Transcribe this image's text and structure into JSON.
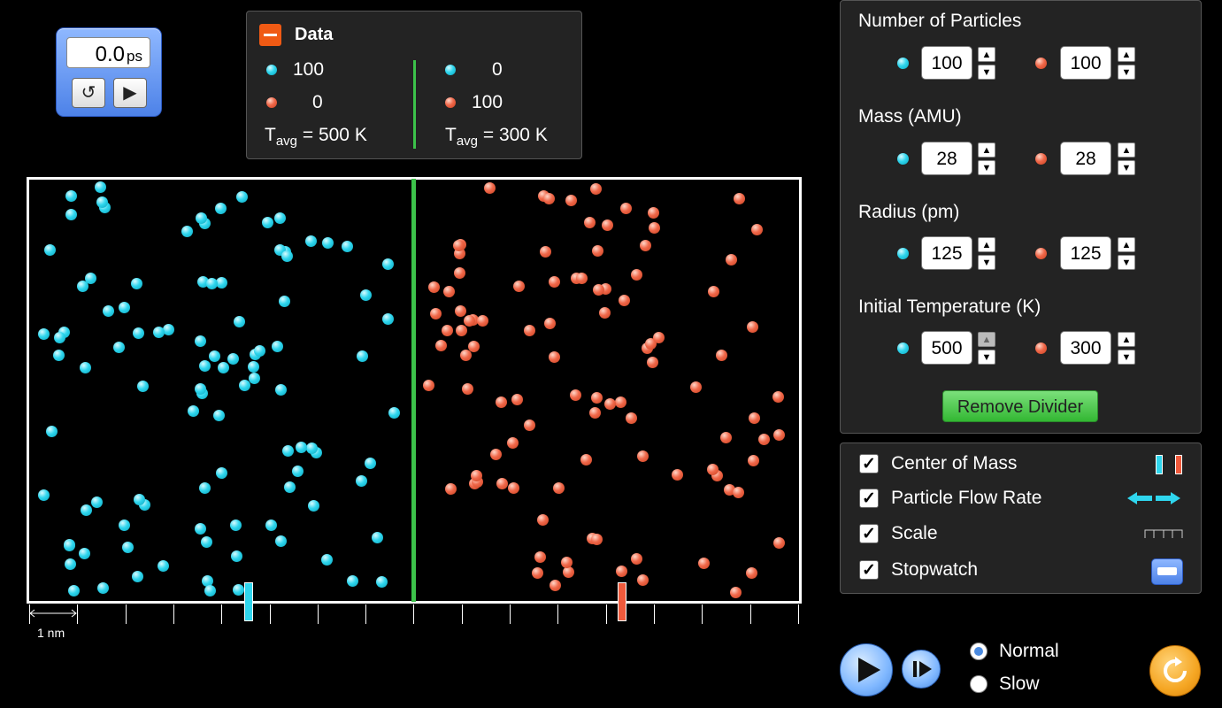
{
  "stopwatch": {
    "value": "0.0",
    "unit": "ps",
    "reset_icon": "undo-icon",
    "play_icon": "play-icon"
  },
  "data_panel": {
    "title": "Data",
    "left": {
      "cyan_count": "100",
      "red_count": "0",
      "t_label": "T",
      "t_sub": "avg",
      "t_value": " = 500 K"
    },
    "right": {
      "cyan_count": "0",
      "red_count": "100",
      "t_label": "T",
      "t_sub": "avg",
      "t_value": " = 300 K"
    }
  },
  "scale": {
    "label": "1 nm"
  },
  "controls": {
    "number_of_particles": {
      "title": "Number of Particles",
      "cyan": "100",
      "red": "100"
    },
    "mass": {
      "title": "Mass (AMU)",
      "cyan": "28",
      "red": "28"
    },
    "radius": {
      "title": "Radius (pm)",
      "cyan": "125",
      "red": "125"
    },
    "initial_temperature": {
      "title": "Initial Temperature (K)",
      "cyan": "500",
      "red": "300"
    },
    "remove_divider": "Remove Divider"
  },
  "options": [
    {
      "label": "Center of Mass",
      "checked": true
    },
    {
      "label": "Particle Flow Rate",
      "checked": true
    },
    {
      "label": "Scale",
      "checked": true
    },
    {
      "label": "Stopwatch",
      "checked": true
    }
  ],
  "playback": {
    "normal": "Normal",
    "slow": "Slow",
    "selected": "Normal"
  },
  "colors": {
    "cyan_particle": "#2fd6ee",
    "red_particle": "#f0684a",
    "divider": "#3cc24a",
    "panel": "#232323"
  }
}
